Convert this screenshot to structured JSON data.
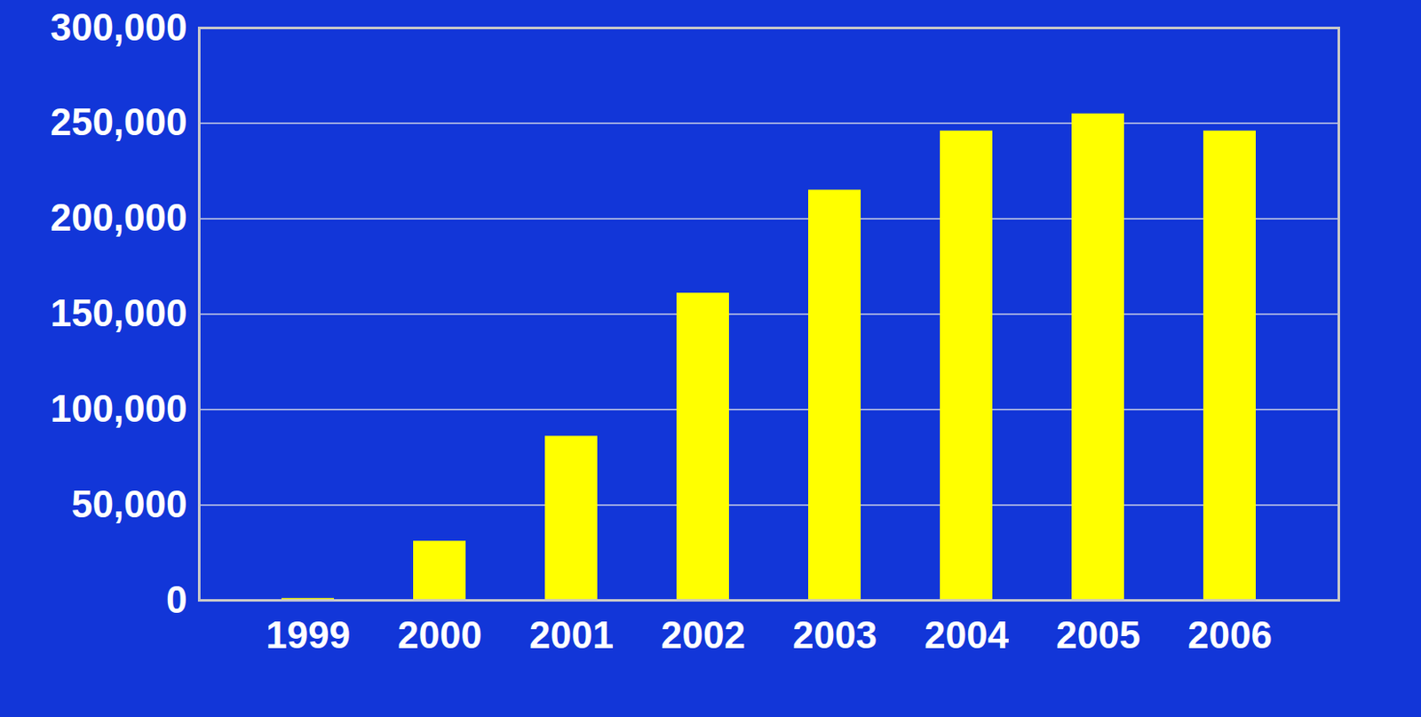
{
  "chart_data": {
    "type": "bar",
    "categories": [
      "1999",
      "2000",
      "2001",
      "2002",
      "2003",
      "2004",
      "2005",
      "2006"
    ],
    "values": [
      1000,
      31000,
      86000,
      161000,
      215000,
      246000,
      255000,
      246000
    ],
    "color": "#ffff00",
    "ylim": [
      0,
      300000
    ],
    "yticks": [
      0,
      {
        "value": 50000,
        "label": "50,000"
      },
      {
        "value": 100000,
        "label": "100,000"
      },
      {
        "value": 150000,
        "label": "150,000"
      },
      {
        "value": 200000,
        "label": "200,000"
      },
      {
        "value": 250000,
        "label": "250,000"
      },
      {
        "value": 300000,
        "label": "300,000"
      }
    ],
    "grid": true
  }
}
